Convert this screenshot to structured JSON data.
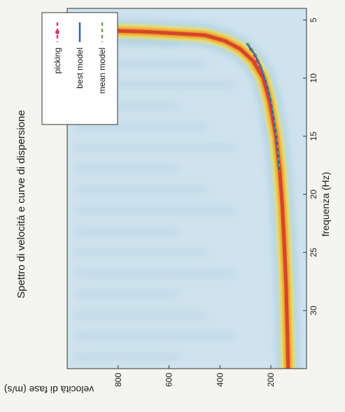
{
  "chart_data": {
    "type": "heatmap",
    "title": "Spettro di velocità e curve di dispersione",
    "xlabel": "frequenza (Hz)",
    "ylabel": "velocità di fase (m/s)",
    "xlim": [
      4,
      35
    ],
    "ylim": [
      60,
      1000
    ],
    "x_ticks": [
      5,
      10,
      15,
      20,
      25,
      30
    ],
    "y_ticks": [
      200,
      400,
      600,
      800
    ],
    "colormap": [
      "#cfe3ee",
      "#9fc6da",
      "#e6e98a",
      "#f2d43a",
      "#e9882a",
      "#d6452a"
    ],
    "legend": {
      "position": "top-right",
      "entries": [
        {
          "label": "picking",
          "color": "#d23a6a",
          "style": "dashed-marker"
        },
        {
          "label": "best model",
          "color": "#2f58b8",
          "style": "solid"
        },
        {
          "label": "mean model",
          "color": "#6aa84f",
          "style": "dashed"
        }
      ]
    },
    "series": [
      {
        "name": "picking",
        "x": [
          7.5,
          8.5,
          9.5,
          10.5,
          11.5,
          12.5,
          13.5,
          14.5,
          15.5,
          16.5,
          17.5
        ],
        "y": [
          280,
          255,
          235,
          220,
          208,
          198,
          190,
          184,
          178,
          174,
          170
        ]
      },
      {
        "name": "best model",
        "x": [
          7,
          8,
          9,
          10,
          11,
          12,
          13,
          14,
          15,
          16,
          17,
          18
        ],
        "y": [
          295,
          262,
          240,
          224,
          210,
          200,
          192,
          185,
          179,
          174,
          170,
          167
        ]
      },
      {
        "name": "mean model",
        "x": [
          7,
          8,
          9,
          10,
          11,
          12,
          13,
          14,
          15,
          16,
          17,
          18
        ],
        "y": [
          290,
          258,
          237,
          221,
          208,
          198,
          190,
          183,
          178,
          173,
          169,
          166
        ]
      }
    ],
    "energy_ridge": {
      "x": [
        5.8,
        6.0,
        6.3,
        6.8,
        7.5,
        8.5,
        10,
        12,
        15,
        18,
        21,
        24,
        28,
        32,
        35
      ],
      "y": [
        1000,
        700,
        460,
        380,
        320,
        270,
        230,
        205,
        180,
        165,
        155,
        148,
        140,
        135,
        132
      ]
    }
  }
}
